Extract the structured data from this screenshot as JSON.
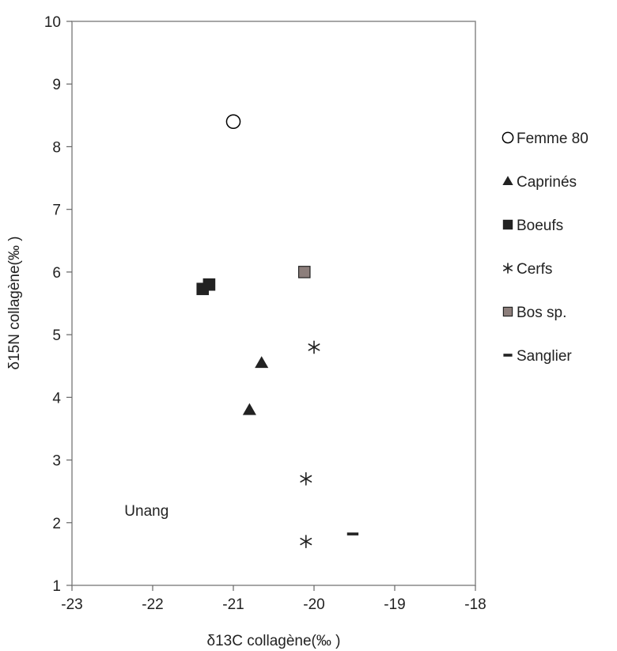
{
  "chart_data": {
    "type": "scatter",
    "title": "",
    "xlabel": "δ13C collagène(‰ )",
    "ylabel": "δ15N collagène(‰ )",
    "xlim": [
      -23,
      -18
    ],
    "ylim": [
      1,
      10
    ],
    "x_ticks": [
      "-23",
      "-22",
      "-21",
      "-20",
      "-19",
      "-18"
    ],
    "y_ticks": [
      "1",
      "2",
      "3",
      "4",
      "5",
      "6",
      "7",
      "8",
      "9",
      "10"
    ],
    "grid": false,
    "legend_position": "right",
    "annotations": [
      {
        "text": "Unang",
        "x": -22.35,
        "y": 2.2
      }
    ],
    "series": [
      {
        "name": "Femme 80",
        "marker": "open-circle",
        "color": "#000000",
        "points": [
          {
            "x": -21.0,
            "y": 8.4
          }
        ]
      },
      {
        "name": "Caprinés",
        "marker": "triangle",
        "color": "#222222",
        "points": [
          {
            "x": -20.65,
            "y": 4.55
          },
          {
            "x": -20.8,
            "y": 3.8
          }
        ]
      },
      {
        "name": "Boeufs",
        "marker": "square",
        "color": "#222222",
        "points": [
          {
            "x": -21.38,
            "y": 5.73
          },
          {
            "x": -21.3,
            "y": 5.8
          }
        ]
      },
      {
        "name": "Cerfs",
        "marker": "asterisk",
        "color": "#222222",
        "points": [
          {
            "x": -20.0,
            "y": 4.8
          },
          {
            "x": -20.1,
            "y": 2.7
          },
          {
            "x": -20.1,
            "y": 1.7
          }
        ]
      },
      {
        "name": "Bos sp.",
        "marker": "square",
        "color": "#8c7e7b",
        "points": [
          {
            "x": -20.12,
            "y": 6.0
          }
        ]
      },
      {
        "name": "Sanglier",
        "marker": "dash",
        "color": "#222222",
        "points": [
          {
            "x": -19.52,
            "y": 1.82
          }
        ]
      }
    ]
  }
}
